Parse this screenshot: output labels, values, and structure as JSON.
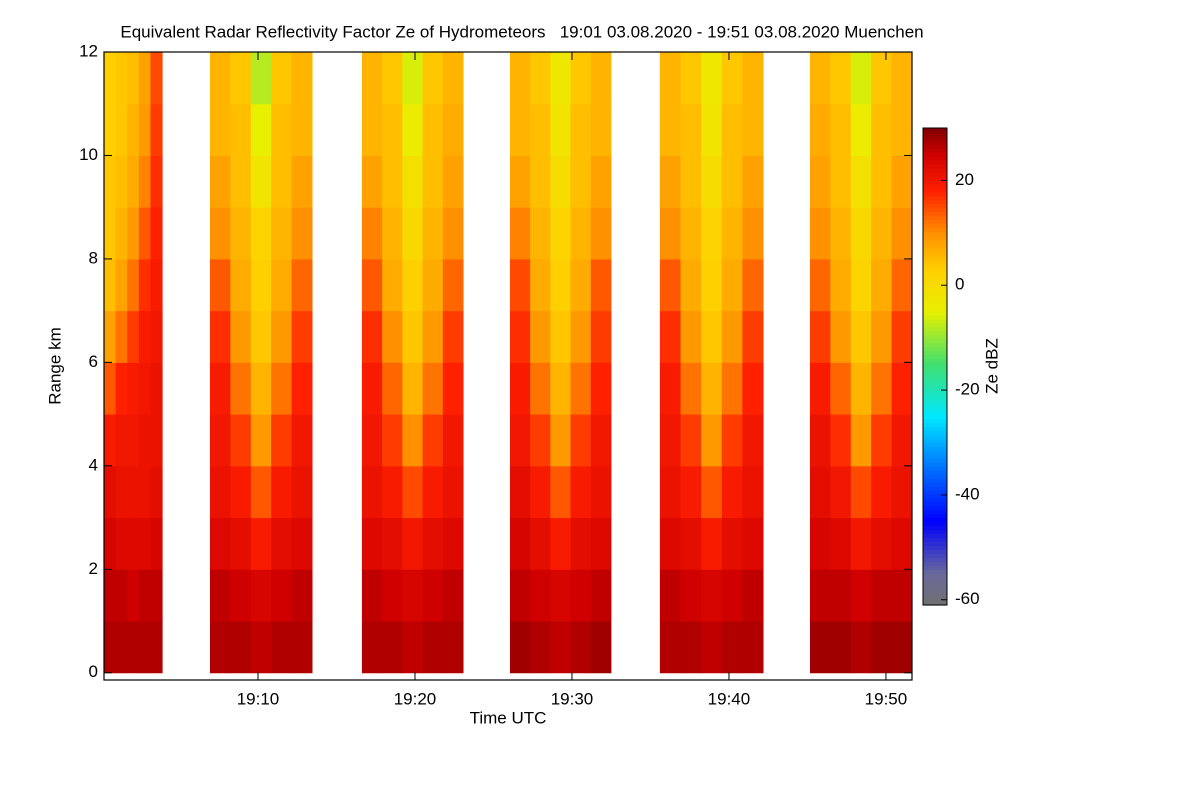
{
  "chart_data": {
    "type": "heatmap",
    "title": "Equivalent Radar Reflectivity Factor Ze of Hydrometeors   19:01 03.08.2020 - 19:51 03.08.2020 Muenchen",
    "xlabel": "Time UTC",
    "ylabel": "Range km",
    "zlabel": "Ze dBZ",
    "xlim": [
      0.19,
      51.66
    ],
    "xticks": [
      {
        "value": 10,
        "label": "19:10"
      },
      {
        "value": 20,
        "label": "19:20"
      },
      {
        "value": 30,
        "label": "19:30"
      },
      {
        "value": 40,
        "label": "19:40"
      },
      {
        "value": 50,
        "label": "19:50"
      }
    ],
    "ylim": [
      -0.14,
      12
    ],
    "yticks": [
      0,
      2,
      4,
      6,
      8,
      10,
      12
    ],
    "zlim": [
      -61,
      30
    ],
    "zticks": [
      -60,
      -40,
      -20,
      0,
      20
    ],
    "colorscale": [
      [
        -61,
        "#707070"
      ],
      [
        -55,
        "#6a6a9a"
      ],
      [
        -45,
        "#0000ff"
      ],
      [
        -35,
        "#0070ff"
      ],
      [
        -25,
        "#00e8ff"
      ],
      [
        -15,
        "#40e070"
      ],
      [
        -5,
        "#e8f000"
      ],
      [
        3,
        "#ffd000"
      ],
      [
        10,
        "#ff9000"
      ],
      [
        18,
        "#ff2000"
      ],
      [
        25,
        "#d00000"
      ],
      [
        30,
        "#800000"
      ]
    ],
    "ybins": [
      0,
      1,
      2,
      3,
      4,
      5,
      6,
      7,
      8,
      9,
      10,
      11,
      12
    ],
    "segments": [
      {
        "x": [
          0.19,
          3.89
        ],
        "values": [
          [
            27,
            27,
            27,
            27,
            27
          ],
          [
            26,
            26,
            25,
            26,
            26
          ],
          [
            24,
            23,
            23,
            23,
            24
          ],
          [
            22,
            21,
            21,
            21,
            22
          ],
          [
            19,
            20,
            20,
            21,
            21
          ],
          [
            14,
            18,
            19,
            20,
            21
          ],
          [
            8,
            12,
            16,
            19,
            20
          ],
          [
            5,
            8,
            12,
            17,
            19
          ],
          [
            4,
            6,
            9,
            14,
            18
          ],
          [
            4,
            5,
            7,
            11,
            17
          ],
          [
            3,
            4,
            6,
            9,
            16
          ],
          [
            3,
            4,
            5,
            8,
            15
          ]
        ]
      },
      {
        "x": [
          6.94,
          13.44
        ],
        "values": [
          [
            27,
            27,
            26,
            27,
            27
          ],
          [
            26,
            25,
            24,
            25,
            26
          ],
          [
            23,
            22,
            19,
            22,
            23
          ],
          [
            21,
            19,
            14,
            19,
            21
          ],
          [
            20,
            16,
            9,
            16,
            20
          ],
          [
            19,
            12,
            6,
            12,
            18
          ],
          [
            17,
            9,
            4,
            9,
            16
          ],
          [
            14,
            7,
            3,
            7,
            13
          ],
          [
            10,
            6,
            2,
            6,
            10
          ],
          [
            8,
            5,
            -2,
            5,
            8
          ],
          [
            6,
            5,
            -5,
            5,
            6
          ],
          [
            6,
            4,
            -8,
            4,
            6
          ]
        ]
      },
      {
        "x": [
          16.62,
          23.06
        ],
        "values": [
          [
            27,
            27,
            26,
            27,
            27
          ],
          [
            26,
            25,
            24,
            25,
            26
          ],
          [
            23,
            22,
            20,
            22,
            23
          ],
          [
            21,
            19,
            15,
            19,
            21
          ],
          [
            20,
            16,
            10,
            16,
            20
          ],
          [
            19,
            13,
            6,
            12,
            18
          ],
          [
            17,
            10,
            4,
            9,
            16
          ],
          [
            14,
            7,
            3,
            7,
            13
          ],
          [
            11,
            6,
            1,
            6,
            10
          ],
          [
            8,
            5,
            -1,
            5,
            8
          ],
          [
            6,
            5,
            -4,
            5,
            7
          ],
          [
            6,
            4,
            -6,
            4,
            6
          ]
        ]
      },
      {
        "x": [
          26.05,
          32.48
        ],
        "values": [
          [
            28,
            27,
            26,
            27,
            28
          ],
          [
            26,
            25,
            24,
            25,
            26
          ],
          [
            24,
            22,
            19,
            22,
            23
          ],
          [
            22,
            19,
            14,
            19,
            21
          ],
          [
            20,
            16,
            9,
            16,
            20
          ],
          [
            19,
            12,
            6,
            12,
            18
          ],
          [
            17,
            9,
            4,
            9,
            16
          ],
          [
            15,
            7,
            3,
            7,
            14
          ],
          [
            11,
            6,
            2,
            6,
            10
          ],
          [
            8,
            5,
            0,
            5,
            8
          ],
          [
            6,
            5,
            -2,
            5,
            6
          ],
          [
            6,
            4,
            -3,
            4,
            6
          ]
        ]
      },
      {
        "x": [
          35.6,
          42.17
        ],
        "values": [
          [
            27,
            27,
            26,
            27,
            27
          ],
          [
            26,
            25,
            24,
            25,
            26
          ],
          [
            23,
            22,
            19,
            22,
            23
          ],
          [
            21,
            19,
            14,
            19,
            21
          ],
          [
            20,
            16,
            9,
            16,
            20
          ],
          [
            19,
            12,
            6,
            12,
            18
          ],
          [
            17,
            9,
            4,
            9,
            16
          ],
          [
            14,
            7,
            3,
            7,
            13
          ],
          [
            10,
            6,
            2,
            6,
            10
          ],
          [
            8,
            5,
            0,
            5,
            8
          ],
          [
            6,
            5,
            -2,
            5,
            6
          ],
          [
            6,
            4,
            -3,
            4,
            6
          ]
        ]
      },
      {
        "x": [
          45.16,
          51.66
        ],
        "values": [
          [
            28,
            28,
            27,
            28,
            28
          ],
          [
            26,
            26,
            25,
            26,
            26
          ],
          [
            24,
            23,
            20,
            22,
            23
          ],
          [
            22,
            20,
            15,
            19,
            21
          ],
          [
            21,
            17,
            9,
            16,
            20
          ],
          [
            19,
            13,
            6,
            12,
            18
          ],
          [
            16,
            9,
            4,
            9,
            16
          ],
          [
            13,
            7,
            2,
            7,
            13
          ],
          [
            10,
            6,
            1,
            6,
            10
          ],
          [
            8,
            5,
            -1,
            5,
            8
          ],
          [
            7,
            5,
            -4,
            5,
            6
          ],
          [
            6,
            4,
            -6,
            4,
            6
          ]
        ]
      }
    ]
  }
}
